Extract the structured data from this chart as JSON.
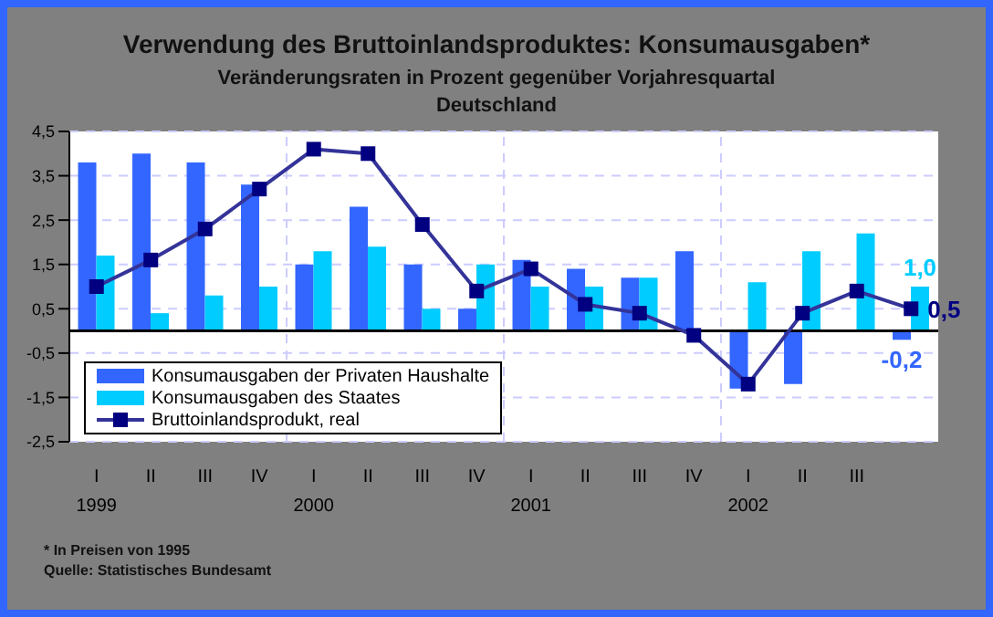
{
  "chart_data": {
    "type": "bar",
    "title": "Verwendung des Bruttoinlandsproduktes: Konsumausgaben*",
    "subtitle": "Veränderungsraten in Prozent gegenüber Vorjahresquartal\nDeutschland",
    "categories": [
      "I\n1999",
      "II",
      "III",
      "IV",
      "I\n2000",
      "II",
      "III",
      "IV",
      "I\n2001",
      "II",
      "III",
      "IV",
      "I\n2002",
      "II",
      "III",
      null
    ],
    "series": [
      {
        "name": "Konsumausgaben der Privaten Haushalte",
        "color": "#3366ff",
        "values": [
          3.8,
          4.0,
          3.8,
          3.3,
          1.5,
          2.8,
          1.5,
          0.5,
          1.6,
          1.4,
          1.2,
          1.8,
          -1.3,
          -1.2,
          null,
          -0.2
        ],
        "value_labels": [
          null,
          null,
          null,
          null,
          null,
          null,
          null,
          null,
          null,
          null,
          null,
          null,
          null,
          null,
          null,
          "-0,2"
        ]
      },
      {
        "name": "Konsumausgaben des Staates",
        "color": "#00ccff",
        "values": [
          1.7,
          0.4,
          0.8,
          1.0,
          1.8,
          1.9,
          0.5,
          1.5,
          1.0,
          1.0,
          1.2,
          0.0,
          1.1,
          1.8,
          2.2,
          1.0
        ],
        "value_labels": [
          null,
          null,
          null,
          null,
          null,
          null,
          null,
          null,
          null,
          null,
          null,
          null,
          null,
          null,
          null,
          "1,0"
        ]
      },
      {
        "name": "Bruttoinlandsprodukt, real",
        "type": "line",
        "color": "#000080",
        "values": [
          1.0,
          1.6,
          2.3,
          3.2,
          4.1,
          4.0,
          2.4,
          0.9,
          1.4,
          0.6,
          0.4,
          -0.1,
          -1.2,
          0.4,
          0.9,
          0.5
        ],
        "value_labels": [
          null,
          null,
          null,
          null,
          null,
          null,
          null,
          null,
          null,
          null,
          null,
          null,
          null,
          null,
          null,
          "0,5"
        ]
      }
    ],
    "ylim": [
      -2.5,
      4.5
    ],
    "yticks": [
      {
        "value": -2.5,
        "label": "-2,5"
      },
      {
        "value": -1.5,
        "label": "-1,5"
      },
      {
        "value": -0.5,
        "label": "-0,5"
      },
      {
        "value": 0.5,
        "label": "0,5"
      },
      {
        "value": 1.5,
        "label": "1,5"
      },
      {
        "value": 2.5,
        "label": "2,5"
      },
      {
        "value": 3.5,
        "label": "3,5"
      },
      {
        "value": 4.5,
        "label": "4,5"
      }
    ],
    "grid": true,
    "legend": "bottom left",
    "marker": "square",
    "line_style": "solid",
    "annotations": [
      "* In Preisen von 1995",
      "Quelle: Statistisches Bundesamt"
    ]
  }
}
